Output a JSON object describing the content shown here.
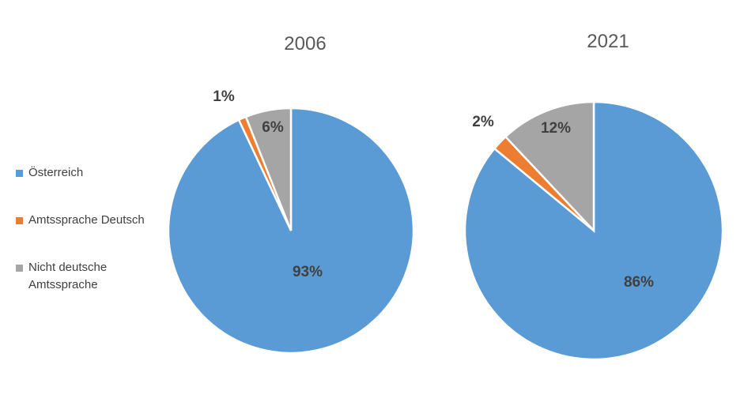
{
  "colors": {
    "oesterreich": "#5b9bd5",
    "amtssprache_deutsch": "#ed7d31",
    "nicht_deutsche": "#a5a5a5"
  },
  "legend": [
    {
      "label": "Österreich",
      "color": "#5b9bd5"
    },
    {
      "label": "Amtssprache Deutsch",
      "color": "#ed7d31"
    },
    {
      "label": "Nicht deutsche Amtssprache",
      "color": "#a5a5a5"
    }
  ],
  "chart_data": [
    {
      "type": "pie",
      "title": "2006",
      "categories": [
        "Österreich",
        "Amtssprache Deutsch",
        "Nicht deutsche Amtssprache"
      ],
      "values": [
        93,
        1,
        6
      ],
      "labels": [
        "93%",
        "1%",
        "6%"
      ],
      "colors": [
        "#5b9bd5",
        "#ed7d31",
        "#a5a5a5"
      ],
      "legend_position": "left"
    },
    {
      "type": "pie",
      "title": "2021",
      "categories": [
        "Österreich",
        "Amtssprache Deutsch",
        "Nicht deutsche Amtssprache"
      ],
      "values": [
        86,
        2,
        12
      ],
      "labels": [
        "86%",
        "2%",
        "12%"
      ],
      "colors": [
        "#5b9bd5",
        "#ed7d31",
        "#a5a5a5"
      ],
      "legend_position": "left"
    }
  ]
}
